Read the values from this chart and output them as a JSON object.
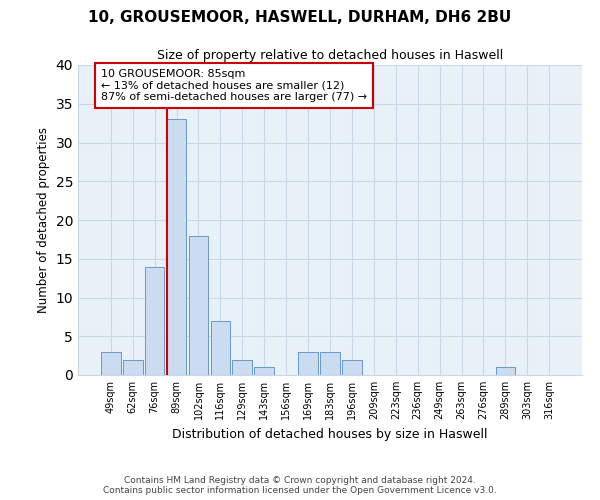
{
  "title": "10, GROUSEMOOR, HASWELL, DURHAM, DH6 2BU",
  "subtitle": "Size of property relative to detached houses in Haswell",
  "xlabel": "Distribution of detached houses by size in Haswell",
  "ylabel": "Number of detached properties",
  "bar_labels": [
    "49sqm",
    "62sqm",
    "76sqm",
    "89sqm",
    "102sqm",
    "116sqm",
    "129sqm",
    "143sqm",
    "156sqm",
    "169sqm",
    "183sqm",
    "196sqm",
    "209sqm",
    "223sqm",
    "236sqm",
    "249sqm",
    "263sqm",
    "276sqm",
    "289sqm",
    "303sqm",
    "316sqm"
  ],
  "bar_values": [
    3,
    2,
    14,
    33,
    18,
    7,
    2,
    1,
    0,
    3,
    3,
    2,
    0,
    0,
    0,
    0,
    0,
    0,
    1,
    0,
    0
  ],
  "bar_color": "#ccdcf0",
  "bar_edge_color": "#6699cc",
  "vline_x_index": 3,
  "vline_color": "#cc0000",
  "ylim": [
    0,
    40
  ],
  "yticks": [
    0,
    5,
    10,
    15,
    20,
    25,
    30,
    35,
    40
  ],
  "annotation_text": "10 GROUSEMOOR: 85sqm\n← 13% of detached houses are smaller (12)\n87% of semi-detached houses are larger (77) →",
  "annotation_box_color": "#ffffff",
  "annotation_box_edge": "#cc0000",
  "footer_line1": "Contains HM Land Registry data © Crown copyright and database right 2024.",
  "footer_line2": "Contains public sector information licensed under the Open Government Licence v3.0.",
  "grid_color": "#c8d8e8",
  "bg_color": "#e8f0f8"
}
